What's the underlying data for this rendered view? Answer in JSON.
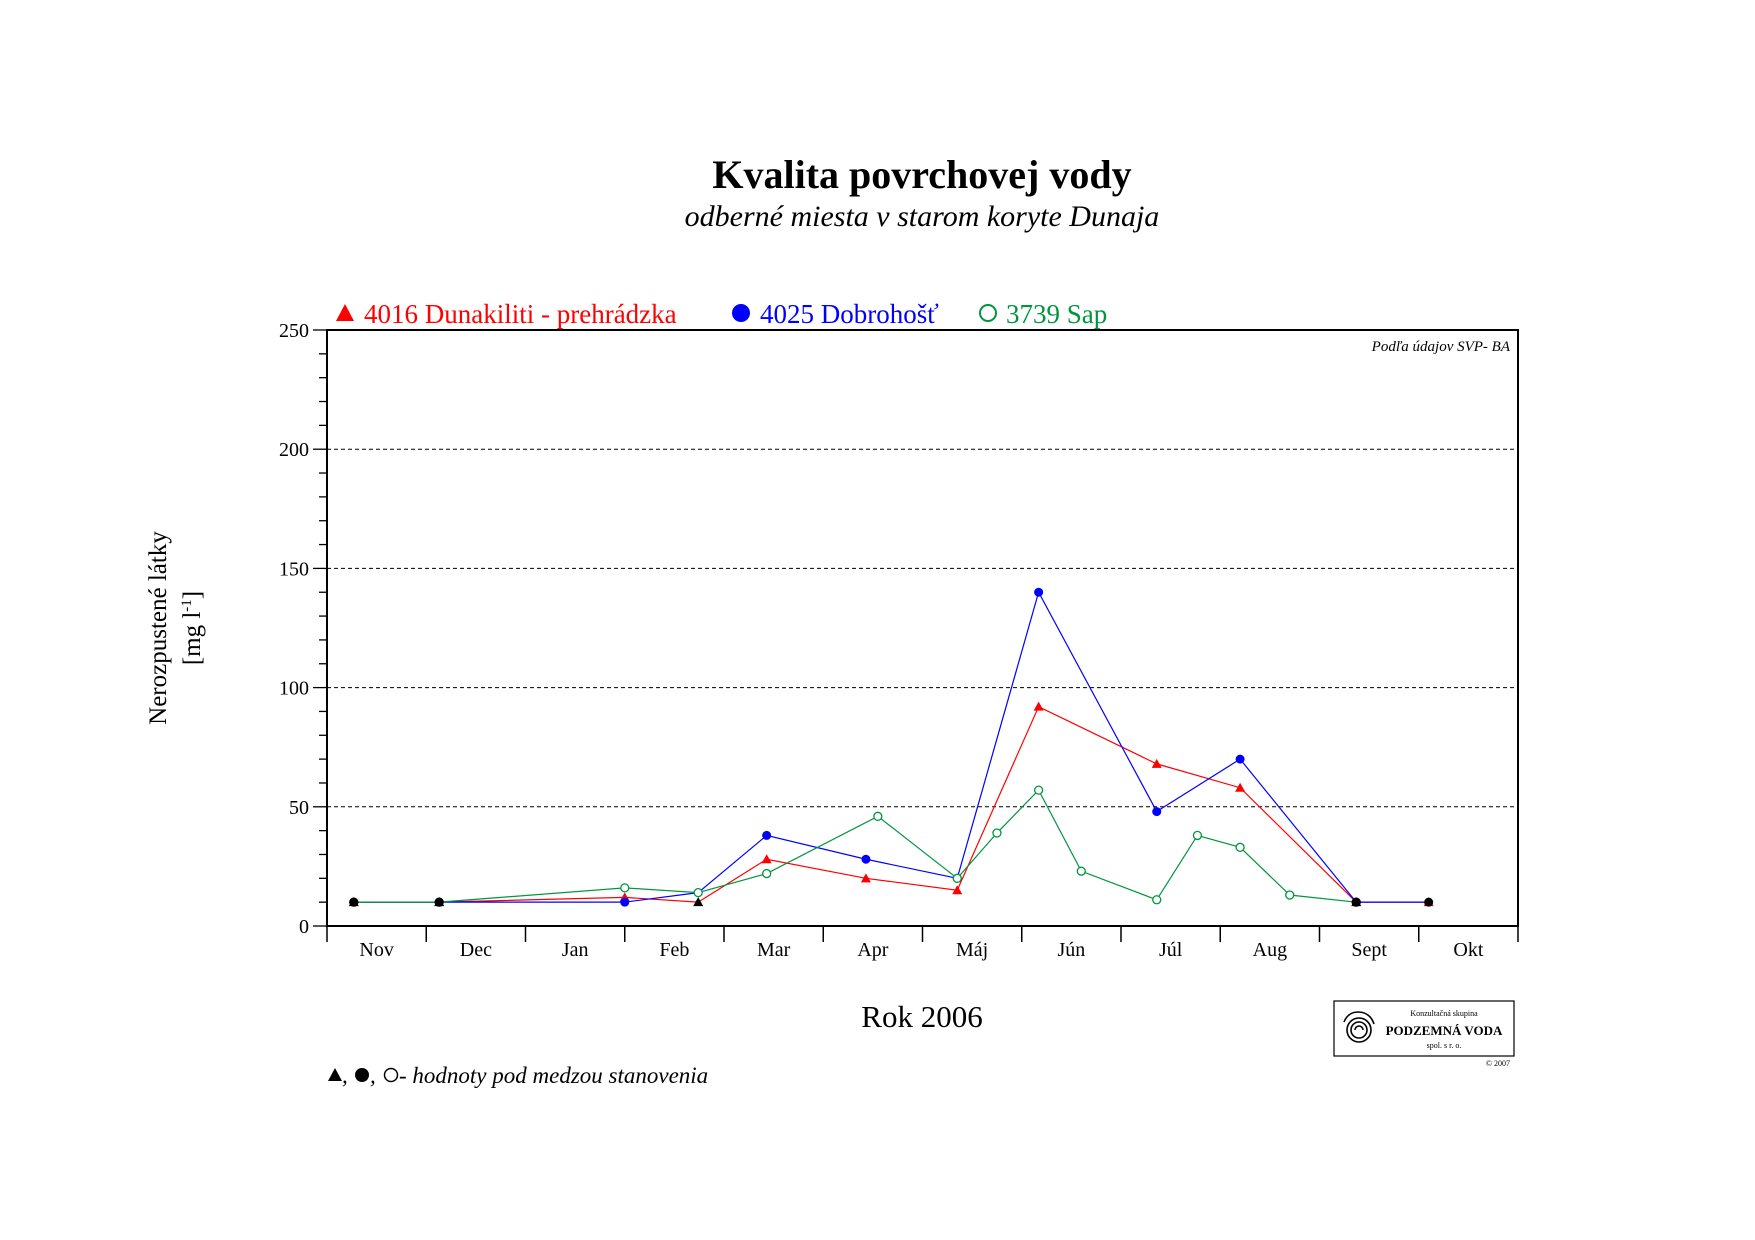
{
  "chart_data": {
    "type": "line",
    "title": "Kvalita povrchovej vody",
    "subtitle": "odberné miesta v starom koryte Dunaja",
    "xlabel": "Rok 2006",
    "ylabel_line1": "Nerozpustené látky",
    "ylabel_line2_prefix": "[mg l",
    "ylabel_line2_sup": "-1",
    "ylabel_line2_suffix": "]",
    "ylim": [
      0,
      250
    ],
    "yticks": [
      0,
      50,
      100,
      150,
      200,
      250
    ],
    "y_minor_step": 10,
    "grid_y": [
      50,
      100,
      150,
      200
    ],
    "x_domain": [
      0,
      12
    ],
    "categories": [
      "Nov",
      "Dec",
      "Jan",
      "Feb",
      "Mar",
      "Apr",
      "Máj",
      "Jún",
      "Júl",
      "Aug",
      "Sept",
      "Okt"
    ],
    "source_note": "Podľa údajov SVP- BA",
    "legend_position": "top",
    "series": [
      {
        "name": "4016 Dunakiliti - prehrádzka",
        "color": "#ff0000",
        "marker": "triangle",
        "points": [
          {
            "x": 0.27,
            "y": 10,
            "below": true
          },
          {
            "x": 1.13,
            "y": 10,
            "below": true
          },
          {
            "x": 3.0,
            "y": 12
          },
          {
            "x": 3.74,
            "y": 10,
            "below": true
          },
          {
            "x": 4.43,
            "y": 28
          },
          {
            "x": 5.43,
            "y": 20
          },
          {
            "x": 6.35,
            "y": 15
          },
          {
            "x": 7.17,
            "y": 92
          },
          {
            "x": 8.36,
            "y": 68
          },
          {
            "x": 9.2,
            "y": 58
          },
          {
            "x": 10.37,
            "y": 10,
            "below": true
          },
          {
            "x": 11.1,
            "y": 10
          }
        ]
      },
      {
        "name": "4025 Dobrohošť",
        "color": "#0000ff",
        "marker": "circle-filled",
        "points": [
          {
            "x": 0.27,
            "y": 10,
            "below": true
          },
          {
            "x": 1.13,
            "y": 10,
            "below": true
          },
          {
            "x": 3.0,
            "y": 10
          },
          {
            "x": 3.74,
            "y": 14
          },
          {
            "x": 4.43,
            "y": 38
          },
          {
            "x": 5.43,
            "y": 28
          },
          {
            "x": 6.35,
            "y": 20
          },
          {
            "x": 7.17,
            "y": 140
          },
          {
            "x": 8.36,
            "y": 48
          },
          {
            "x": 9.2,
            "y": 70
          },
          {
            "x": 10.37,
            "y": 10,
            "below": true
          },
          {
            "x": 11.1,
            "y": 10,
            "below": true
          }
        ]
      },
      {
        "name": "3739 Sap",
        "color": "#00963c",
        "marker": "circle-open",
        "points": [
          {
            "x": 0.27,
            "y": 10,
            "below": true
          },
          {
            "x": 1.13,
            "y": 10,
            "below": true
          },
          {
            "x": 3.0,
            "y": 16
          },
          {
            "x": 3.74,
            "y": 14
          },
          {
            "x": 4.43,
            "y": 22
          },
          {
            "x": 5.55,
            "y": 46
          },
          {
            "x": 6.35,
            "y": 20
          },
          {
            "x": 6.75,
            "y": 39
          },
          {
            "x": 7.17,
            "y": 57
          },
          {
            "x": 7.6,
            "y": 23
          },
          {
            "x": 8.36,
            "y": 11
          },
          {
            "x": 8.77,
            "y": 38
          },
          {
            "x": 9.2,
            "y": 33
          },
          {
            "x": 9.7,
            "y": 13
          },
          {
            "x": 10.37,
            "y": 10,
            "below": true
          }
        ]
      }
    ]
  },
  "footnote": {
    "prefix": ", ",
    "separator": ", ",
    "text": " - hodnoty pod medzou stanovenia"
  },
  "logo": {
    "line1": "Konzultačná skupina",
    "line2": "PODZEMNÁ VODA",
    "line3": "spol. s r. o.",
    "copyright": "© 2007"
  }
}
